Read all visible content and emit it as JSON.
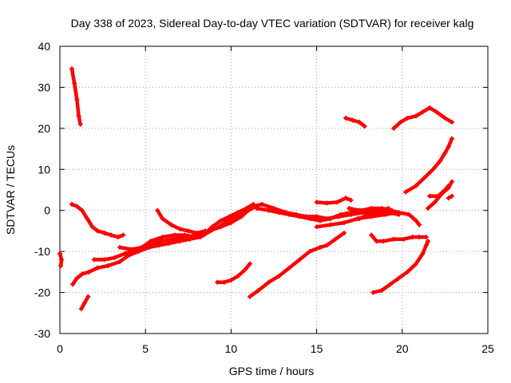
{
  "chart_data": {
    "type": "scatter",
    "title": "Day 338 of 2023, Sidereal Day-to-day VTEC variation (SDTVAR) for receiver kalg",
    "xlabel": "GPS time / hours",
    "ylabel": "SDTVAR / TECUs",
    "xlim": [
      0,
      25
    ],
    "ylim": [
      -30,
      40
    ],
    "xticks": [
      "0",
      "5",
      "10",
      "15",
      "20",
      "25"
    ],
    "yticks": [
      "-30",
      "-20",
      "-10",
      "0",
      "10",
      "20",
      "30",
      "40"
    ],
    "grid": true,
    "legend": "none",
    "marker_color": "#ff0000",
    "segments": [
      [
        [
          0.7,
          34.5
        ],
        [
          0.85,
          31
        ],
        [
          1.0,
          27
        ],
        [
          1.1,
          23
        ],
        [
          1.2,
          21
        ]
      ],
      [
        [
          0.0,
          -10.5
        ],
        [
          0.1,
          -12
        ],
        [
          0.05,
          -13.5
        ]
      ],
      [
        [
          0.75,
          -18
        ],
        [
          1.0,
          -16.5
        ],
        [
          1.3,
          -15.5
        ],
        [
          1.7,
          -15
        ],
        [
          2.2,
          -14
        ],
        [
          2.8,
          -13.5
        ],
        [
          3.5,
          -12.5
        ],
        [
          4.0,
          -11
        ],
        [
          4.6,
          -10
        ],
        [
          5.2,
          -9
        ],
        [
          5.8,
          -8.5
        ],
        [
          6.4,
          -8
        ],
        [
          7.0,
          -7.5
        ],
        [
          7.6,
          -7
        ],
        [
          8.2,
          -6.5
        ],
        [
          8.8,
          -5
        ],
        [
          9.3,
          -4
        ],
        [
          9.8,
          -2.5
        ],
        [
          10.4,
          -1
        ],
        [
          10.9,
          0.5
        ],
        [
          11.3,
          1.5
        ]
      ],
      [
        [
          2.0,
          -12
        ],
        [
          2.6,
          -12
        ],
        [
          3.2,
          -11.5
        ],
        [
          3.8,
          -10.5
        ],
        [
          4.5,
          -9.5
        ],
        [
          5.2,
          -8.5
        ],
        [
          5.9,
          -7.5
        ],
        [
          6.6,
          -7
        ],
        [
          7.3,
          -6.5
        ],
        [
          8.0,
          -6
        ],
        [
          8.7,
          -5
        ],
        [
          9.4,
          -4
        ],
        [
          10.0,
          -3
        ],
        [
          10.6,
          -1.5
        ],
        [
          11.0,
          0
        ],
        [
          11.5,
          1
        ]
      ],
      [
        [
          3.5,
          -9
        ],
        [
          4.2,
          -9.5
        ],
        [
          4.8,
          -9
        ],
        [
          5.3,
          -7.5
        ],
        [
          6.0,
          -6.5
        ],
        [
          6.7,
          -6
        ],
        [
          7.3,
          -6
        ],
        [
          7.9,
          -6.5
        ],
        [
          8.4,
          -6
        ],
        [
          8.9,
          -4
        ],
        [
          9.4,
          -2.5
        ],
        [
          9.9,
          -1.5
        ],
        [
          10.4,
          -0.5
        ],
        [
          10.9,
          0.5
        ],
        [
          11.3,
          1
        ],
        [
          11.8,
          1.5
        ],
        [
          12.5,
          0.5
        ],
        [
          13.2,
          -0.5
        ],
        [
          13.8,
          -1
        ],
        [
          14.4,
          -1.5
        ],
        [
          15.0,
          -1.5
        ],
        [
          15.6,
          -2
        ],
        [
          16.3,
          -1.5
        ],
        [
          17.0,
          -1
        ],
        [
          17.8,
          -0.5
        ],
        [
          18.5,
          0
        ],
        [
          19.2,
          0.5
        ]
      ],
      [
        [
          0.7,
          1.5
        ],
        [
          1.0,
          1
        ],
        [
          1.3,
          0
        ],
        [
          1.6,
          -2
        ],
        [
          1.9,
          -4
        ],
        [
          2.2,
          -5
        ],
        [
          2.6,
          -5.5
        ],
        [
          3.0,
          -6
        ],
        [
          3.4,
          -6.5
        ],
        [
          3.7,
          -6
        ]
      ],
      [
        [
          5.7,
          0
        ],
        [
          6.0,
          -2
        ],
        [
          6.5,
          -3.5
        ],
        [
          7.0,
          -4.5
        ],
        [
          7.5,
          -5
        ],
        [
          8.0,
          -5.5
        ],
        [
          8.5,
          -5
        ]
      ],
      [
        [
          11.5,
          0.5
        ],
        [
          12.2,
          0
        ],
        [
          12.8,
          -0.5
        ],
        [
          13.4,
          -1
        ],
        [
          14.0,
          -1.5
        ],
        [
          14.6,
          -2
        ],
        [
          15.2,
          -2.5
        ],
        [
          15.8,
          -2
        ],
        [
          16.4,
          -1
        ],
        [
          17.0,
          -0.5
        ],
        [
          17.6,
          0
        ],
        [
          18.2,
          0.5
        ],
        [
          18.8,
          0.5
        ],
        [
          19.4,
          0
        ]
      ],
      [
        [
          15.0,
          -4
        ],
        [
          15.8,
          -3.5
        ],
        [
          16.6,
          -3
        ],
        [
          17.4,
          -2
        ],
        [
          18.2,
          -1.5
        ],
        [
          19.0,
          -1
        ],
        [
          19.8,
          -0.5
        ],
        [
          20.4,
          -1
        ],
        [
          20.8,
          -2.5
        ],
        [
          21.0,
          -3.5
        ]
      ],
      [
        [
          15.0,
          2
        ],
        [
          15.6,
          1.8
        ],
        [
          16.2,
          2
        ],
        [
          16.7,
          3
        ],
        [
          17.0,
          2.5
        ]
      ],
      [
        [
          16.9,
          0.5
        ],
        [
          17.5,
          0
        ],
        [
          18.1,
          -0.5
        ],
        [
          18.7,
          -0.5
        ],
        [
          19.3,
          0
        ],
        [
          19.8,
          -0.5
        ]
      ],
      [
        [
          17.5,
          -2
        ],
        [
          18.0,
          -1
        ],
        [
          18.5,
          -0.5
        ],
        [
          19.2,
          -0.5
        ],
        [
          19.8,
          -1
        ]
      ],
      [
        [
          9.2,
          -17.5
        ],
        [
          9.6,
          -17.5
        ],
        [
          10.0,
          -17
        ],
        [
          10.4,
          -16
        ],
        [
          10.8,
          -14.5
        ],
        [
          11.1,
          -13
        ]
      ],
      [
        [
          11.1,
          -21
        ],
        [
          11.6,
          -19.5
        ],
        [
          12.2,
          -17.5
        ],
        [
          12.8,
          -16
        ],
        [
          13.4,
          -14
        ],
        [
          14.0,
          -12
        ],
        [
          14.6,
          -10
        ],
        [
          15.2,
          -9
        ],
        [
          15.6,
          -8.5
        ],
        [
          16.1,
          -7
        ],
        [
          16.6,
          -5.5
        ]
      ],
      [
        [
          18.3,
          -20
        ],
        [
          18.8,
          -19.5
        ],
        [
          19.3,
          -18
        ],
        [
          19.8,
          -16.5
        ],
        [
          20.3,
          -15
        ],
        [
          20.8,
          -13
        ],
        [
          21.2,
          -10.5
        ],
        [
          21.4,
          -8.5
        ],
        [
          21.5,
          -7.5
        ]
      ],
      [
        [
          18.2,
          -6
        ],
        [
          18.5,
          -7.5
        ],
        [
          18.9,
          -7.5
        ],
        [
          19.5,
          -7
        ],
        [
          20.1,
          -7
        ],
        [
          20.6,
          -6.5
        ],
        [
          21.0,
          -6.5
        ],
        [
          21.4,
          -6.5
        ]
      ],
      [
        [
          1.25,
          -24
        ],
        [
          1.45,
          -22.5
        ],
        [
          1.65,
          -21
        ]
      ],
      [
        [
          16.7,
          22.5
        ],
        [
          17.1,
          22
        ],
        [
          17.5,
          21.5
        ],
        [
          17.8,
          20.5
        ]
      ],
      [
        [
          19.5,
          20
        ],
        [
          19.9,
          21.5
        ],
        [
          20.3,
          22.5
        ],
        [
          20.8,
          23
        ],
        [
          21.2,
          24
        ],
        [
          21.6,
          25
        ],
        [
          22.0,
          24
        ],
        [
          22.5,
          22.5
        ],
        [
          22.9,
          21.5
        ]
      ],
      [
        [
          20.2,
          4.5
        ],
        [
          20.8,
          6
        ],
        [
          21.3,
          8
        ],
        [
          21.8,
          10
        ],
        [
          22.2,
          12
        ],
        [
          22.5,
          14
        ],
        [
          22.7,
          15.5
        ],
        [
          22.9,
          17.5
        ]
      ],
      [
        [
          21.5,
          0.5
        ],
        [
          21.9,
          2
        ],
        [
          22.3,
          4
        ],
        [
          22.7,
          5.5
        ],
        [
          22.9,
          7
        ]
      ],
      [
        [
          21.6,
          3.5
        ],
        [
          22.1,
          3.5
        ],
        [
          22.5,
          5
        ],
        [
          22.7,
          6
        ]
      ],
      [
        [
          22.7,
          3
        ],
        [
          22.9,
          3.5
        ]
      ]
    ]
  }
}
